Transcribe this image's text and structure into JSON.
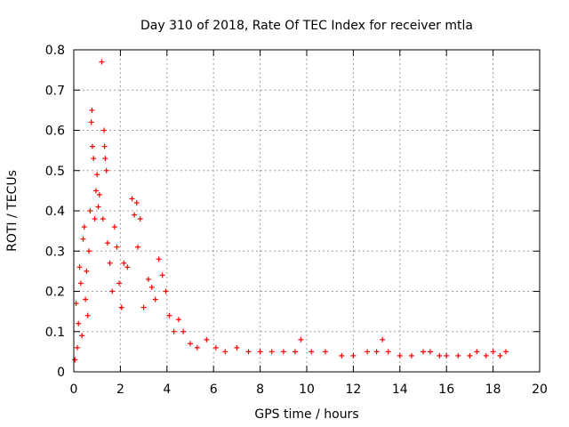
{
  "chart_data": {
    "type": "scatter",
    "title": "Day 310 of 2018, Rate Of TEC Index for receiver mtla",
    "xlabel": "GPS time / hours",
    "ylabel": "ROTI / TECUs",
    "xlim": [
      0,
      20
    ],
    "ylim": [
      0,
      0.8
    ],
    "xticks": [
      "0",
      "2",
      "4",
      "6",
      "8",
      "10",
      "12",
      "14",
      "16",
      "18",
      "20"
    ],
    "yticks": [
      "0",
      "0.1",
      "0.2",
      "0.3",
      "0.4",
      "0.5",
      "0.6",
      "0.7",
      "0.8"
    ],
    "grid": true,
    "marker": "+",
    "color": "#ff0000",
    "series": [
      {
        "name": "ROTI",
        "points": [
          [
            0.05,
            0.03
          ],
          [
            0.1,
            0.17
          ],
          [
            0.15,
            0.06
          ],
          [
            0.2,
            0.12
          ],
          [
            0.25,
            0.26
          ],
          [
            0.3,
            0.22
          ],
          [
            0.35,
            0.09
          ],
          [
            0.4,
            0.33
          ],
          [
            0.45,
            0.36
          ],
          [
            0.5,
            0.18
          ],
          [
            0.55,
            0.25
          ],
          [
            0.6,
            0.14
          ],
          [
            0.65,
            0.3
          ],
          [
            0.7,
            0.4
          ],
          [
            0.75,
            0.62
          ],
          [
            0.78,
            0.65
          ],
          [
            0.8,
            0.56
          ],
          [
            0.85,
            0.53
          ],
          [
            0.9,
            0.38
          ],
          [
            0.95,
            0.45
          ],
          [
            1.0,
            0.49
          ],
          [
            1.05,
            0.41
          ],
          [
            1.1,
            0.44
          ],
          [
            1.2,
            0.77
          ],
          [
            1.25,
            0.38
          ],
          [
            1.3,
            0.6
          ],
          [
            1.32,
            0.56
          ],
          [
            1.35,
            0.53
          ],
          [
            1.4,
            0.5
          ],
          [
            1.45,
            0.32
          ],
          [
            1.55,
            0.27
          ],
          [
            1.65,
            0.2
          ],
          [
            1.75,
            0.36
          ],
          [
            1.85,
            0.31
          ],
          [
            1.95,
            0.22
          ],
          [
            2.05,
            0.16
          ],
          [
            2.15,
            0.27
          ],
          [
            2.3,
            0.26
          ],
          [
            2.5,
            0.43
          ],
          [
            2.6,
            0.39
          ],
          [
            2.7,
            0.42
          ],
          [
            2.75,
            0.31
          ],
          [
            2.85,
            0.38
          ],
          [
            3.0,
            0.16
          ],
          [
            3.2,
            0.23
          ],
          [
            3.35,
            0.21
          ],
          [
            3.5,
            0.18
          ],
          [
            3.65,
            0.28
          ],
          [
            3.8,
            0.24
          ],
          [
            3.95,
            0.2
          ],
          [
            4.1,
            0.14
          ],
          [
            4.3,
            0.1
          ],
          [
            4.5,
            0.13
          ],
          [
            4.7,
            0.1
          ],
          [
            5.0,
            0.07
          ],
          [
            5.3,
            0.06
          ],
          [
            5.7,
            0.08
          ],
          [
            6.1,
            0.06
          ],
          [
            6.5,
            0.05
          ],
          [
            7.0,
            0.06
          ],
          [
            7.5,
            0.05
          ],
          [
            8.0,
            0.05
          ],
          [
            8.5,
            0.05
          ],
          [
            9.0,
            0.05
          ],
          [
            9.5,
            0.05
          ],
          [
            9.75,
            0.08
          ],
          [
            10.2,
            0.05
          ],
          [
            10.8,
            0.05
          ],
          [
            11.5,
            0.04
          ],
          [
            12.0,
            0.04
          ],
          [
            12.6,
            0.05
          ],
          [
            13.0,
            0.05
          ],
          [
            13.25,
            0.08
          ],
          [
            13.5,
            0.05
          ],
          [
            14.0,
            0.04
          ],
          [
            14.5,
            0.04
          ],
          [
            15.0,
            0.05
          ],
          [
            15.3,
            0.05
          ],
          [
            15.7,
            0.04
          ],
          [
            16.0,
            0.04
          ],
          [
            16.5,
            0.04
          ],
          [
            17.0,
            0.04
          ],
          [
            17.3,
            0.05
          ],
          [
            17.7,
            0.04
          ],
          [
            18.0,
            0.05
          ],
          [
            18.3,
            0.04
          ],
          [
            18.55,
            0.05
          ]
        ]
      }
    ]
  }
}
